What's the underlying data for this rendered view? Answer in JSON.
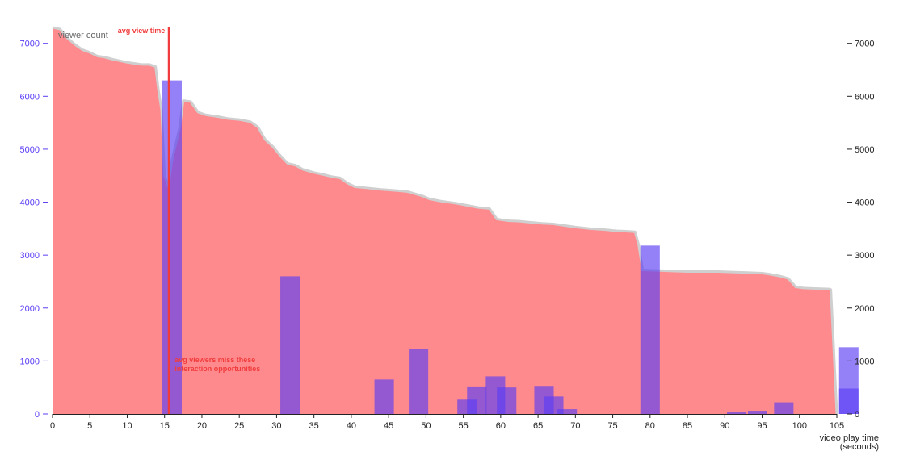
{
  "chart_data": {
    "type": "area",
    "xlabel_line1": "video play time",
    "xlabel_line2": "(seconds)",
    "xlim": [
      0,
      105
    ],
    "x_ticks": [
      0,
      5,
      10,
      15,
      20,
      25,
      30,
      35,
      40,
      45,
      50,
      55,
      60,
      65,
      70,
      75,
      80,
      85,
      90,
      95,
      100,
      105
    ],
    "ylim": [
      0,
      7300
    ],
    "y_ticks": [
      0,
      1000,
      2000,
      3000,
      4000,
      5000,
      6000,
      7000
    ],
    "y_tick_labels_left": [
      "0",
      "1000",
      "2000",
      "3000",
      "4000",
      "5000",
      "6000",
      "7000"
    ],
    "y_tick_labels_right": [
      "0",
      "1000",
      "2000",
      "3000",
      "4000",
      "5000",
      "6000",
      "7000"
    ],
    "series_area_label": "viewer count",
    "avg_view_time": {
      "x": 15.6,
      "label": "avg view time"
    },
    "annotation_line1": "avg viewers miss these",
    "annotation_line2": "interaction opportunities",
    "viewer_count": [
      [
        0,
        7300
      ],
      [
        1,
        7270
      ],
      [
        2,
        7100
      ],
      [
        3,
        6980
      ],
      [
        4,
        6880
      ],
      [
        5,
        6830
      ],
      [
        6,
        6760
      ],
      [
        7,
        6740
      ],
      [
        8,
        6700
      ],
      [
        9,
        6670
      ],
      [
        10,
        6640
      ],
      [
        11,
        6620
      ],
      [
        12,
        6600
      ],
      [
        13,
        6600
      ],
      [
        13.8,
        6560
      ],
      [
        14.2,
        6100
      ],
      [
        14.6,
        5750
      ],
      [
        15.0,
        4500
      ],
      [
        15.5,
        4300
      ],
      [
        16.0,
        4800
      ],
      [
        16.5,
        5100
      ],
      [
        17.0,
        5400
      ],
      [
        17.5,
        5920
      ],
      [
        18.5,
        5900
      ],
      [
        19.5,
        5700
      ],
      [
        20.5,
        5650
      ],
      [
        22,
        5620
      ],
      [
        23.5,
        5580
      ],
      [
        25,
        5560
      ],
      [
        26.5,
        5520
      ],
      [
        27.5,
        5420
      ],
      [
        28.5,
        5180
      ],
      [
        29.5,
        5050
      ],
      [
        30.5,
        4880
      ],
      [
        31.5,
        4730
      ],
      [
        32.5,
        4700
      ],
      [
        33.5,
        4620
      ],
      [
        35,
        4560
      ],
      [
        36,
        4530
      ],
      [
        37.5,
        4480
      ],
      [
        38.5,
        4460
      ],
      [
        39.5,
        4360
      ],
      [
        40.5,
        4290
      ],
      [
        42,
        4270
      ],
      [
        44,
        4240
      ],
      [
        46,
        4220
      ],
      [
        47.5,
        4200
      ],
      [
        48.5,
        4160
      ],
      [
        49.5,
        4120
      ],
      [
        50.5,
        4060
      ],
      [
        52,
        4020
      ],
      [
        54,
        3980
      ],
      [
        55.5,
        3940
      ],
      [
        57,
        3900
      ],
      [
        58.5,
        3880
      ],
      [
        59.5,
        3680
      ],
      [
        61,
        3650
      ],
      [
        62.5,
        3640
      ],
      [
        64,
        3620
      ],
      [
        65.5,
        3600
      ],
      [
        67,
        3590
      ],
      [
        68.5,
        3560
      ],
      [
        70,
        3530
      ],
      [
        72,
        3500
      ],
      [
        74,
        3480
      ],
      [
        75.5,
        3460
      ],
      [
        77,
        3450
      ],
      [
        78,
        3440
      ],
      [
        78.5,
        3180
      ],
      [
        79,
        2720
      ],
      [
        81,
        2710
      ],
      [
        83,
        2700
      ],
      [
        85,
        2690
      ],
      [
        87,
        2690
      ],
      [
        89,
        2690
      ],
      [
        91,
        2680
      ],
      [
        93,
        2670
      ],
      [
        95,
        2660
      ],
      [
        96,
        2640
      ],
      [
        97.5,
        2600
      ],
      [
        98.5,
        2560
      ],
      [
        99.5,
        2400
      ],
      [
        100.5,
        2380
      ],
      [
        102,
        2370
      ],
      [
        104,
        2360
      ],
      [
        104.2,
        2350
      ],
      [
        104.6,
        1200
      ],
      [
        105,
        0
      ]
    ],
    "bars": [
      {
        "x": 16.0,
        "width": 2.6,
        "value": 6300
      },
      {
        "x": 31.8,
        "width": 2.6,
        "value": 2600
      },
      {
        "x": 44.4,
        "width": 2.6,
        "value": 650
      },
      {
        "x": 49.0,
        "width": 2.6,
        "value": 1230
      },
      {
        "x": 55.5,
        "width": 2.6,
        "value": 270
      },
      {
        "x": 56.8,
        "width": 2.6,
        "value": 520
      },
      {
        "x": 59.3,
        "width": 2.6,
        "value": 710
      },
      {
        "x": 60.8,
        "width": 2.6,
        "value": 500
      },
      {
        "x": 65.8,
        "width": 2.6,
        "value": 530
      },
      {
        "x": 67.1,
        "width": 2.6,
        "value": 330
      },
      {
        "x": 68.9,
        "width": 2.6,
        "value": 90
      },
      {
        "x": 80.0,
        "width": 2.6,
        "value": 3180
      },
      {
        "x": 91.6,
        "width": 2.6,
        "value": 40
      },
      {
        "x": 94.4,
        "width": 2.6,
        "value": 60
      },
      {
        "x": 97.9,
        "width": 2.6,
        "value": 220
      },
      {
        "x": 106.6,
        "width": 2.6,
        "value": 1260
      },
      {
        "x": 106.6,
        "width": 2.6,
        "value": 480
      }
    ],
    "colors": {
      "area_fill": "#ff8a8e",
      "area_line": "#cfcfcf",
      "bar_fill": "#5b3df5",
      "avg_line": "#f03c3c",
      "left_axis": "#5b3df5",
      "right_axis": "#222222"
    }
  }
}
